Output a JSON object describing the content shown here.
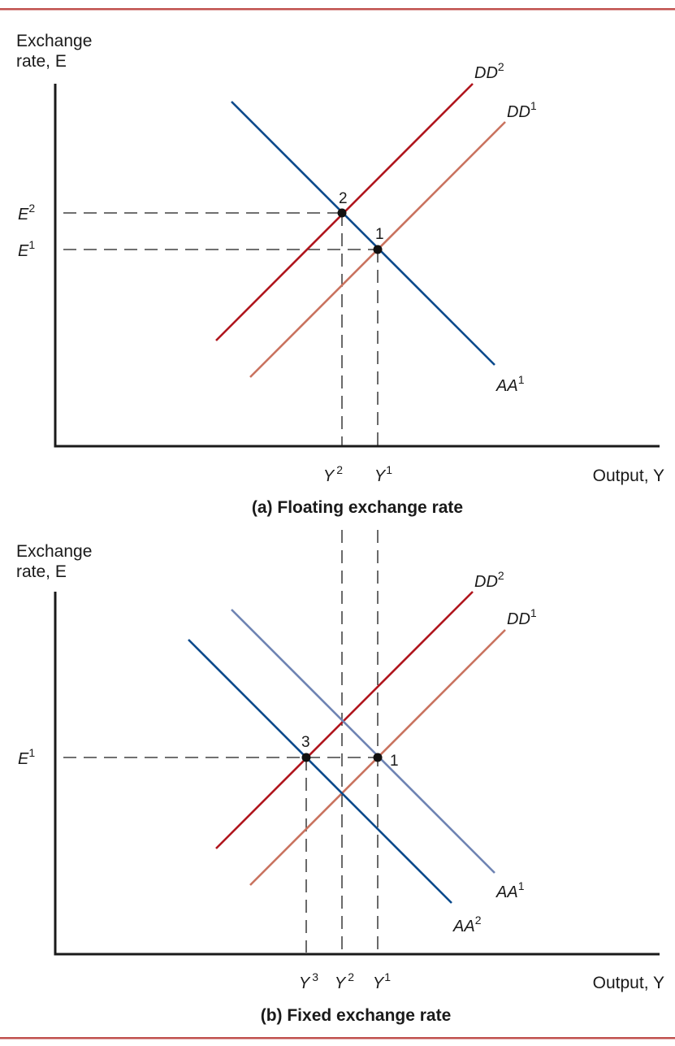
{
  "colors": {
    "frame": "#c0504d",
    "dd2": "#b0161e",
    "dd1": "#c9735f",
    "aa1_floating": "#0b4a8c",
    "aa1_fixed": "#6f84b3",
    "aa2": "#0b4a8c",
    "dot": "#111111"
  },
  "panel_a": {
    "y_axis_title_line1": "Exchange",
    "y_axis_title_line2": "rate, E",
    "x_axis_title": "Output, Y",
    "caption": "(a) Floating exchange rate",
    "curves": {
      "dd2": {
        "base": "DD",
        "sup": "2"
      },
      "dd1": {
        "base": "DD",
        "sup": "1"
      },
      "aa1": {
        "base": "AA",
        "sup": "1"
      }
    },
    "y_ticks": [
      {
        "base": "E",
        "sup": "2"
      },
      {
        "base": "E",
        "sup": "1"
      }
    ],
    "x_ticks": [
      {
        "base": "Y",
        "sup": "2"
      },
      {
        "base": "Y",
        "sup": "1"
      }
    ],
    "points": [
      "2",
      "1"
    ]
  },
  "panel_b": {
    "y_axis_title_line1": "Exchange",
    "y_axis_title_line2": "rate, E",
    "x_axis_title": "Output, Y",
    "caption": "(b) Fixed exchange rate",
    "curves": {
      "dd2": {
        "base": "DD",
        "sup": "2"
      },
      "dd1": {
        "base": "DD",
        "sup": "1"
      },
      "aa1": {
        "base": "AA",
        "sup": "1"
      },
      "aa2": {
        "base": "AA",
        "sup": "2"
      }
    },
    "y_ticks": [
      {
        "base": "E",
        "sup": "1"
      }
    ],
    "x_ticks": [
      {
        "base": "Y",
        "sup": "3"
      },
      {
        "base": "Y",
        "sup": "2"
      },
      {
        "base": "Y",
        "sup": "1"
      }
    ],
    "points": [
      "3",
      "1"
    ]
  }
}
